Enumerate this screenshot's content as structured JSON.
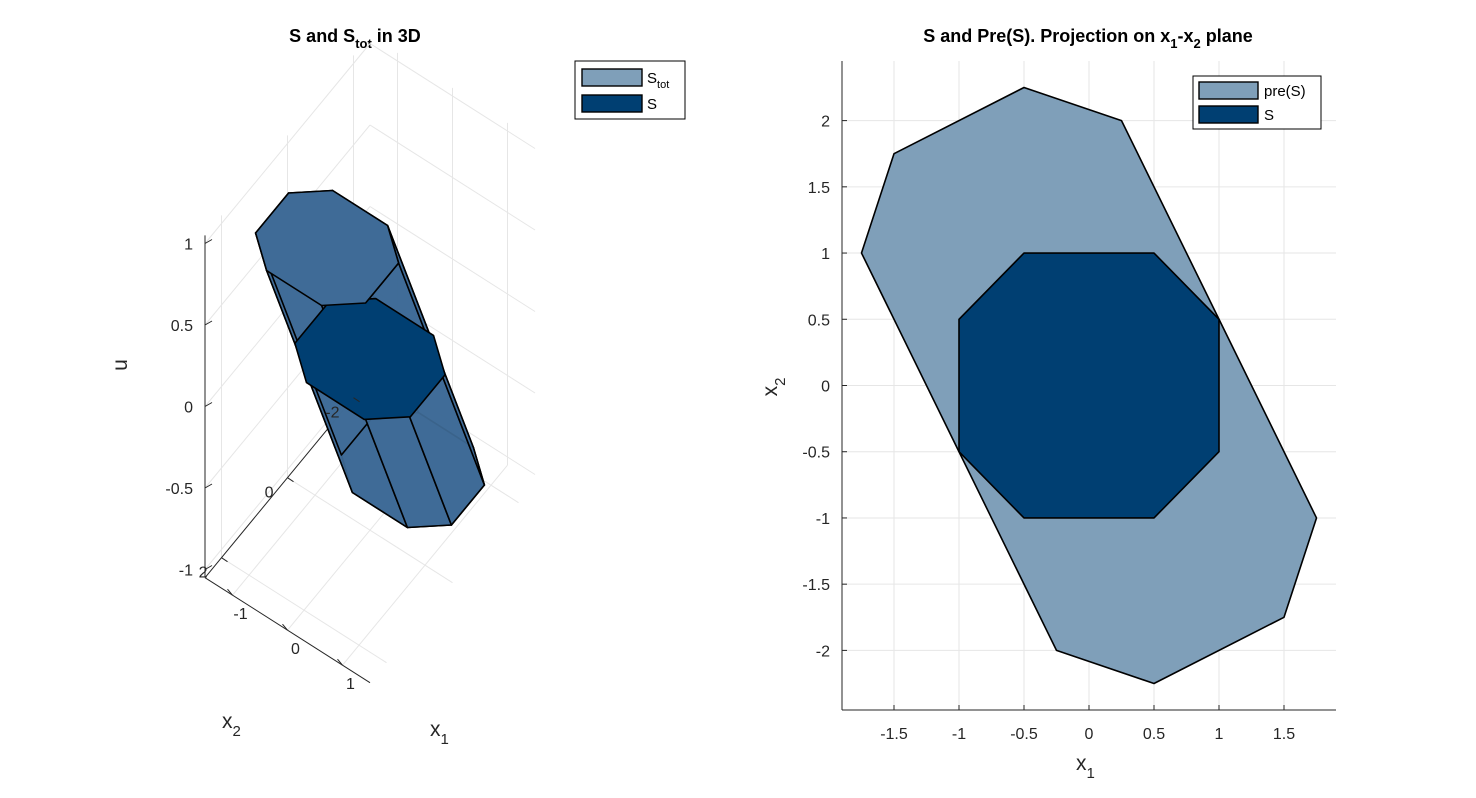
{
  "colors": {
    "stot": "#7f9fb9",
    "s": "#003f72",
    "box3d": "#3f6b97",
    "inner3d": "#1f5585"
  },
  "chart_data": [
    {
      "type": "area",
      "title": {
        "main": "S and S",
        "sub": "tot",
        "rest": " in 3D"
      },
      "xlabel": {
        "main": "x",
        "sub": "1"
      },
      "ylabel": {
        "main": "x",
        "sub": "2"
      },
      "zlabel": "u",
      "x_ticks": [
        "-1",
        "0",
        "1"
      ],
      "y_ticks": [
        "-2",
        "0",
        "2"
      ],
      "z_ticks": [
        "-1",
        "-0.5",
        "0",
        "0.5",
        "1"
      ],
      "zlim": [
        -1,
        1
      ],
      "legend": {
        "placement": "top-right",
        "entries": [
          {
            "main": "S",
            "sub": "tot"
          },
          {
            "main": "S",
            "sub": ""
          }
        ]
      },
      "series": [
        {
          "name": "S_tot",
          "octagon": [
            [
              1,
              0.5
            ],
            [
              0.5,
              1
            ],
            [
              -0.5,
              1
            ],
            [
              -1,
              0.5
            ],
            [
              -1,
              -0.5
            ],
            [
              -0.5,
              -1
            ],
            [
              0.5,
              -1
            ],
            [
              1,
              -0.5
            ]
          ],
          "u_range": [
            -1,
            1
          ]
        },
        {
          "name": "S",
          "u": 0
        }
      ]
    },
    {
      "type": "area",
      "title": {
        "p1": "S and Pre(S). Projection on x",
        "s1": "1",
        "p2": "-x",
        "s2": "2",
        "p3": " plane"
      },
      "xlabel": {
        "main": "x",
        "sub": "1"
      },
      "ylabel": {
        "main": "x",
        "sub": "2"
      },
      "xlim": [
        -1.9,
        1.9
      ],
      "ylim": [
        -2.45,
        2.45
      ],
      "x_ticks": [
        -1.5,
        -1,
        -0.5,
        0,
        0.5,
        1,
        1.5
      ],
      "y_ticks": [
        -2,
        -1.5,
        -1,
        -0.5,
        0,
        0.5,
        1,
        1.5,
        2
      ],
      "grid": true,
      "legend": {
        "placement": "top-right",
        "entries": [
          "pre(S)",
          "S"
        ]
      },
      "series": [
        {
          "name": "pre(S)",
          "x": [
            -1.75,
            -1.5,
            -0.5,
            0.25,
            1,
            1.75,
            1.5,
            0.5,
            -0.25,
            -1
          ],
          "y": [
            1,
            1.75,
            2.25,
            2,
            0.5,
            -1,
            -1.75,
            -2.25,
            -2,
            -0.5
          ]
        },
        {
          "name": "S",
          "x": [
            -1,
            -0.5,
            0.5,
            1,
            1,
            0.5,
            -0.5,
            -1
          ],
          "y": [
            0.5,
            1,
            1,
            0.5,
            -0.5,
            -1,
            -1,
            -0.5
          ]
        }
      ]
    }
  ]
}
